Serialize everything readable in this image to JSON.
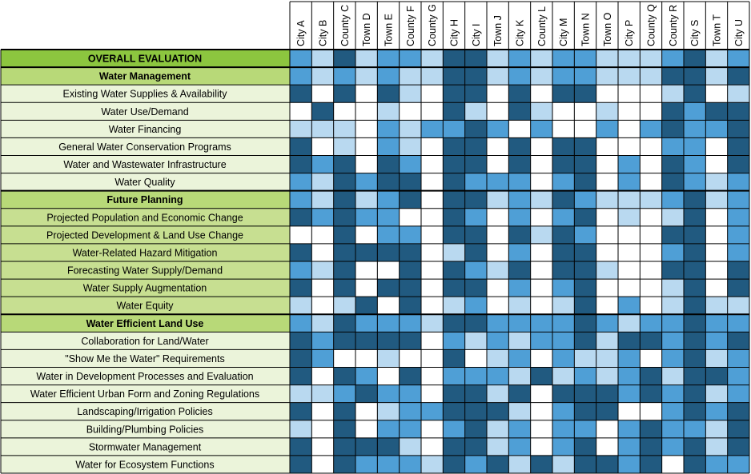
{
  "colors": {
    "dark": "#215a80",
    "medium": "#4f9fd6",
    "light": "#b9d9f0",
    "white": "#ffffff",
    "overall_label_bg": "#8cc63f",
    "section_label_bg": "#b8d978",
    "sub_label_bg_water": "#ebf4da",
    "sub_label_bg_future": "#c7df91",
    "sub_label_bg_land": "#ebf4da",
    "grid_line": "#000000"
  },
  "chart_data": {
    "type": "heatmap",
    "columns": [
      "City A",
      "City B",
      "County C",
      "Town D",
      "Town E",
      "County F",
      "County G",
      "City H",
      "City I",
      "Town J",
      "City K",
      "County L",
      "City M",
      "Town N",
      "Town O",
      "City P",
      "County Q",
      "County R",
      "City S",
      "Town T",
      "City U"
    ],
    "legend": {
      "0": "white",
      "1": "light",
      "2": "medium",
      "3": "dark"
    },
    "rows": [
      {
        "label": "OVERALL EVALUATION",
        "kind": "overall",
        "values": [
          2,
          1,
          3,
          1,
          2,
          2,
          1,
          3,
          3,
          1,
          2,
          1,
          2,
          2,
          1,
          1,
          1,
          2,
          3,
          1,
          2
        ]
      },
      {
        "label": "Water Management",
        "kind": "section",
        "values": [
          2,
          1,
          2,
          1,
          2,
          1,
          1,
          3,
          3,
          1,
          2,
          1,
          2,
          2,
          1,
          1,
          1,
          3,
          3,
          1,
          3
        ]
      },
      {
        "label": "Existing Water Supplies & Availability",
        "kind": "water",
        "values": [
          3,
          0,
          3,
          0,
          3,
          1,
          0,
          3,
          3,
          0,
          3,
          0,
          3,
          3,
          0,
          0,
          0,
          1,
          3,
          0,
          1
        ]
      },
      {
        "label": "Water Use/Demand",
        "kind": "water",
        "values": [
          0,
          3,
          0,
          0,
          1,
          0,
          0,
          3,
          1,
          0,
          3,
          1,
          0,
          0,
          1,
          0,
          0,
          3,
          2,
          3,
          3
        ]
      },
      {
        "label": "Water Financing",
        "kind": "water",
        "values": [
          1,
          1,
          1,
          0,
          2,
          1,
          2,
          2,
          3,
          2,
          0,
          2,
          0,
          0,
          2,
          0,
          2,
          3,
          2,
          2,
          3
        ]
      },
      {
        "label": "General Water Conservation Programs",
        "kind": "water",
        "values": [
          3,
          0,
          1,
          0,
          2,
          1,
          0,
          3,
          3,
          0,
          3,
          0,
          3,
          3,
          0,
          0,
          0,
          2,
          2,
          0,
          3
        ]
      },
      {
        "label": "Water and Wastewater Infrastructure",
        "kind": "water",
        "values": [
          3,
          2,
          3,
          0,
          3,
          2,
          0,
          3,
          3,
          0,
          3,
          0,
          3,
          3,
          0,
          2,
          0,
          3,
          2,
          0,
          3
        ]
      },
      {
        "label": "Water Quality",
        "kind": "water",
        "values": [
          2,
          1,
          3,
          2,
          3,
          3,
          0,
          3,
          2,
          2,
          2,
          0,
          2,
          3,
          0,
          2,
          0,
          3,
          2,
          1,
          2
        ]
      },
      {
        "label": "Future Planning",
        "kind": "section",
        "values": [
          2,
          1,
          3,
          1,
          2,
          3,
          0,
          3,
          3,
          1,
          2,
          1,
          3,
          2,
          1,
          1,
          1,
          2,
          3,
          1,
          2
        ]
      },
      {
        "label": "Projected Population and Economic Change",
        "kind": "future",
        "values": [
          3,
          2,
          3,
          2,
          2,
          0,
          0,
          3,
          2,
          0,
          2,
          0,
          2,
          3,
          0,
          1,
          0,
          1,
          3,
          0,
          2
        ]
      },
      {
        "label": "Projected Development & Land Use Change",
        "kind": "future",
        "values": [
          0,
          0,
          3,
          0,
          2,
          2,
          0,
          3,
          3,
          0,
          3,
          1,
          3,
          2,
          0,
          0,
          0,
          3,
          3,
          0,
          2
        ]
      },
      {
        "label": "Water-Related Hazard Mitigation",
        "kind": "future",
        "values": [
          3,
          0,
          3,
          3,
          3,
          3,
          0,
          1,
          3,
          0,
          2,
          0,
          3,
          3,
          0,
          0,
          0,
          2,
          3,
          0,
          2
        ]
      },
      {
        "label": "Forecasting Water Supply/Demand",
        "kind": "future",
        "values": [
          2,
          1,
          3,
          0,
          0,
          3,
          0,
          3,
          2,
          1,
          3,
          0,
          3,
          3,
          1,
          0,
          0,
          3,
          3,
          0,
          3
        ]
      },
      {
        "label": "Water Supply Augmentation",
        "kind": "future",
        "values": [
          3,
          0,
          3,
          0,
          3,
          3,
          0,
          3,
          3,
          0,
          2,
          0,
          2,
          3,
          0,
          0,
          0,
          1,
          3,
          0,
          3
        ]
      },
      {
        "label": "Water Equity",
        "kind": "future",
        "values": [
          1,
          0,
          1,
          3,
          0,
          3,
          0,
          1,
          2,
          0,
          1,
          0,
          1,
          3,
          0,
          2,
          0,
          1,
          3,
          1,
          1
        ]
      },
      {
        "label": "Water Efficient Land Use",
        "kind": "section",
        "values": [
          2,
          1,
          3,
          2,
          2,
          2,
          1,
          3,
          3,
          2,
          2,
          2,
          2,
          3,
          2,
          1,
          2,
          2,
          3,
          2,
          2
        ]
      },
      {
        "label": "Collaboration for Land/Water",
        "kind": "land",
        "values": [
          3,
          2,
          3,
          3,
          3,
          3,
          0,
          2,
          1,
          2,
          1,
          2,
          2,
          3,
          1,
          3,
          3,
          2,
          3,
          2,
          3
        ]
      },
      {
        "label": "\"Show Me the Water\" Requirements",
        "kind": "land",
        "values": [
          3,
          2,
          0,
          0,
          1,
          0,
          0,
          3,
          0,
          1,
          2,
          0,
          2,
          1,
          1,
          2,
          0,
          2,
          3,
          1,
          2
        ]
      },
      {
        "label": "Water in Development Processes and Evaluation",
        "kind": "land",
        "values": [
          3,
          0,
          3,
          2,
          0,
          3,
          0,
          2,
          2,
          2,
          1,
          3,
          1,
          2,
          1,
          2,
          3,
          1,
          3,
          3,
          2
        ]
      },
      {
        "label": "Water Efficient Urban Form and Zoning Regulations",
        "kind": "land",
        "values": [
          1,
          1,
          2,
          3,
          2,
          2,
          0,
          3,
          3,
          1,
          3,
          0,
          3,
          3,
          3,
          2,
          3,
          2,
          3,
          1,
          2
        ]
      },
      {
        "label": "Landscaping/Irrigation Policies",
        "kind": "land",
        "values": [
          3,
          0,
          3,
          0,
          1,
          2,
          2,
          3,
          3,
          3,
          1,
          0,
          2,
          3,
          3,
          0,
          0,
          2,
          3,
          2,
          3
        ]
      },
      {
        "label": "Building/Plumbing Policies",
        "kind": "land",
        "values": [
          1,
          0,
          3,
          0,
          2,
          2,
          0,
          2,
          3,
          1,
          2,
          0,
          2,
          2,
          0,
          2,
          3,
          2,
          2,
          1,
          3
        ]
      },
      {
        "label": "Stormwater Management",
        "kind": "land",
        "values": [
          3,
          0,
          3,
          3,
          3,
          1,
          0,
          3,
          3,
          1,
          2,
          0,
          2,
          3,
          0,
          2,
          3,
          2,
          3,
          1,
          3
        ]
      },
      {
        "label": "Water for Ecosystem Functions",
        "kind": "land",
        "values": [
          3,
          0,
          3,
          2,
          2,
          2,
          1,
          3,
          2,
          3,
          1,
          3,
          1,
          3,
          3,
          2,
          3,
          0,
          3,
          2,
          2
        ]
      }
    ]
  }
}
